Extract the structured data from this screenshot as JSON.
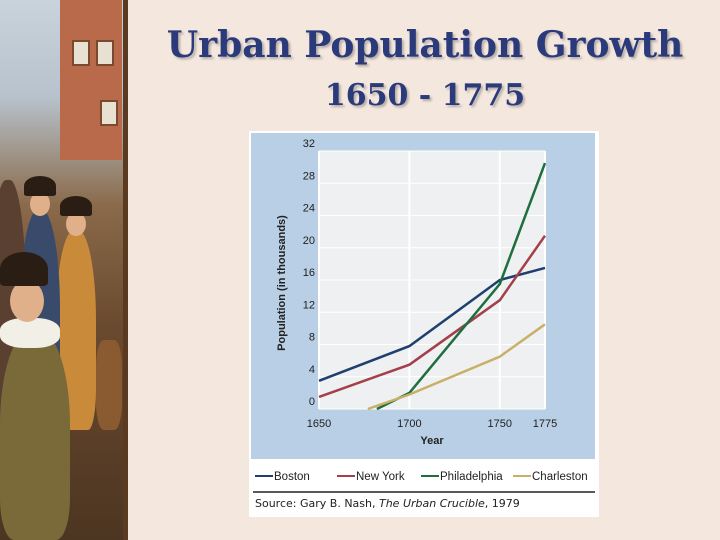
{
  "slide": {
    "title": "Urban Population Growth",
    "subtitle": "1650 - 1775",
    "source_prefix": "Source: Gary B. Nash, ",
    "source_work": "The Urban Crucible",
    "source_suffix": ", 1979"
  },
  "colors": {
    "background": "#f3e7de",
    "plot_panel": "#b8cfe6",
    "plot_area": "#eef0f2",
    "title": "#2a3a7a"
  },
  "chart_data": {
    "type": "line",
    "title": "",
    "xlabel": "Year",
    "ylabel": "Population (in thousands)",
    "x": [
      1650,
      1700,
      1750,
      1775
    ],
    "xlim": [
      1650,
      1775
    ],
    "ylim": [
      0,
      32
    ],
    "xticks": [
      1650,
      1700,
      1750,
      1775
    ],
    "yticks": [
      0,
      4,
      8,
      12,
      16,
      20,
      24,
      28,
      32
    ],
    "grid": true,
    "legend_placement": "bottom",
    "series": [
      {
        "name": "Boston",
        "color": "#1f3f6e",
        "points": [
          [
            1650,
            3.5
          ],
          [
            1700,
            7.8
          ],
          [
            1750,
            16.0
          ],
          [
            1775,
            17.5
          ]
        ]
      },
      {
        "name": "New York",
        "color": "#a3404a",
        "points": [
          [
            1650,
            1.5
          ],
          [
            1700,
            5.5
          ],
          [
            1750,
            13.5
          ],
          [
            1775,
            21.5
          ]
        ]
      },
      {
        "name": "Philadelphia",
        "color": "#1e6e3e",
        "points": [
          [
            1682,
            0
          ],
          [
            1700,
            2.0
          ],
          [
            1750,
            15.5
          ],
          [
            1775,
            30.5
          ]
        ]
      },
      {
        "name": "Charleston",
        "color": "#c9b068",
        "points": [
          [
            1677,
            0
          ],
          [
            1700,
            1.8
          ],
          [
            1750,
            6.5
          ],
          [
            1775,
            10.5
          ]
        ]
      }
    ]
  }
}
